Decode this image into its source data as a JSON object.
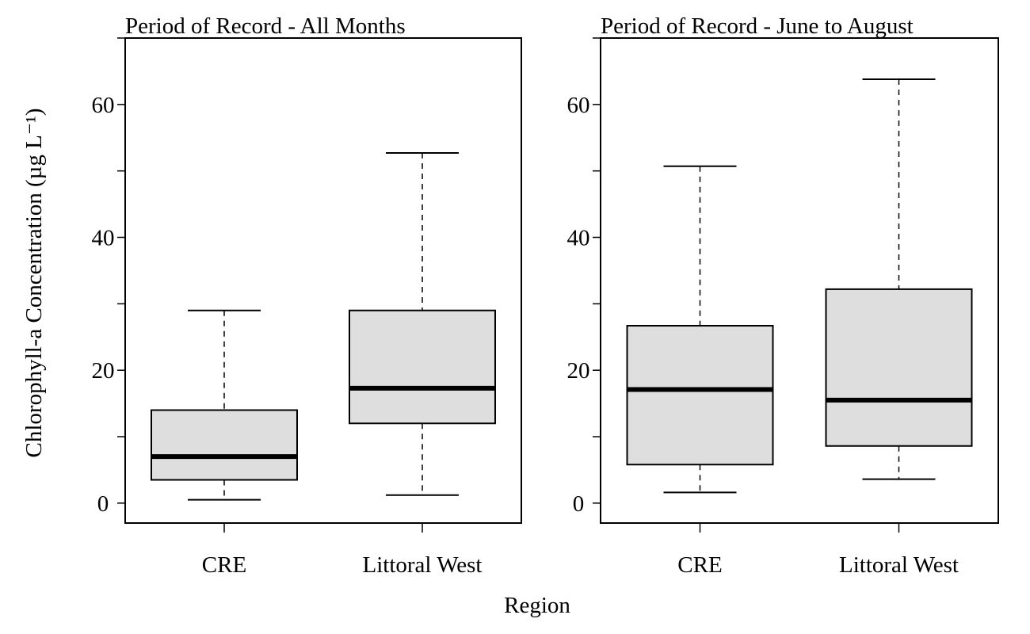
{
  "chart_data": {
    "type": "boxplot",
    "ylabel": "Chlorophyll-a Concentration (µg L⁻¹)",
    "xlabel": "Region",
    "ylim": [
      -3,
      70
    ],
    "yticks": [
      0,
      20,
      40,
      60
    ],
    "yticks_minor": [
      10,
      30,
      50,
      70
    ],
    "box_fill": "#dedede",
    "panels": [
      {
        "title": "Period of Record - All Months",
        "categories": [
          "CRE",
          "Littoral West"
        ],
        "boxes": [
          {
            "whisker_low": 0.5,
            "q1": 3.5,
            "median": 7.0,
            "q3": 14.0,
            "whisker_high": 29.0
          },
          {
            "whisker_low": 1.2,
            "q1": 12.0,
            "median": 17.3,
            "q3": 29.0,
            "whisker_high": 52.7
          }
        ]
      },
      {
        "title": "Period of Record - June to August",
        "categories": [
          "CRE",
          "Littoral West"
        ],
        "boxes": [
          {
            "whisker_low": 1.6,
            "q1": 5.8,
            "median": 17.1,
            "q3": 26.7,
            "whisker_high": 50.7
          },
          {
            "whisker_low": 3.6,
            "q1": 8.6,
            "median": 15.5,
            "q3": 32.2,
            "whisker_high": 63.8
          }
        ]
      }
    ]
  }
}
